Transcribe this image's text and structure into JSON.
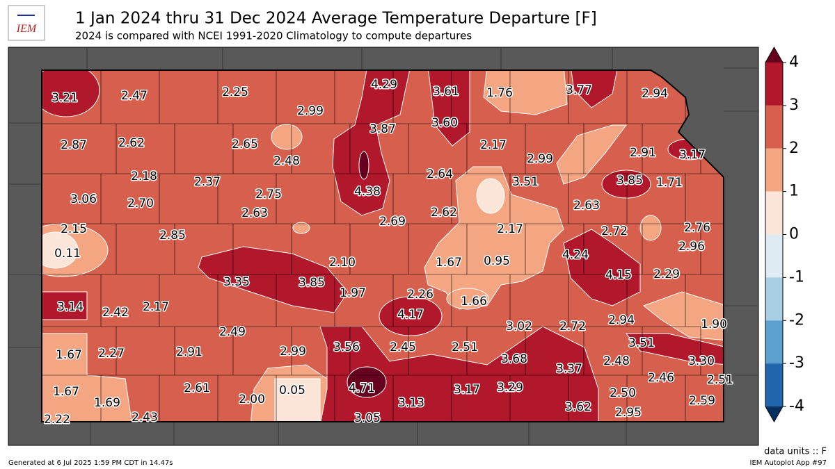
{
  "logo": {
    "text": "IEM"
  },
  "title": "1 Jan 2024 thru 31 Dec 2024 Average Temperature Departure [F]",
  "subtitle": "2024 is compared with NCEI 1991-2020 Climatology to compute departures",
  "labels": [
    "3.21",
    "2.47",
    "2.25",
    "2.99",
    "4.29",
    "3.61",
    "1.76",
    "3.77",
    "2.94",
    "2.87",
    "2.62",
    "2.65",
    "2.48",
    "3.87",
    "3.60",
    "2.17",
    "2.99",
    "2.91",
    "3.17",
    "2.18",
    "2.37",
    "2.75",
    "4.38",
    "2.64",
    "3.51",
    "3.85",
    "1.71",
    "3.06",
    "2.70",
    "2.63",
    "2.69",
    "2.62",
    "2.63",
    "2.15",
    "2.85",
    "2.17",
    "2.72",
    "2.76",
    "2.96",
    "0.11",
    "2.10",
    "1.67",
    "0.95",
    "4.24",
    "3.35",
    "3.85",
    "1.97",
    "2.26",
    "4.15",
    "2.29",
    "3.14",
    "2.42",
    "2.17",
    "1.66",
    "4.17",
    "2.94",
    "1.90",
    "2.49",
    "3.02",
    "2.72",
    "3.51",
    "1.67",
    "2.27",
    "2.91",
    "2.99",
    "3.56",
    "2.45",
    "2.51",
    "3.68",
    "3.37",
    "2.48",
    "3.30",
    "1.67",
    "1.69",
    "2.61",
    "2.00",
    "0.05",
    "4.71",
    "3.13",
    "3.17",
    "3.29",
    "2.50",
    "2.46",
    "2.51",
    "2.59",
    "2.22",
    "2.43",
    "3.05",
    "3.62",
    "2.95"
  ],
  "colorbar": {
    "ticks": [
      4,
      3,
      2,
      1,
      0,
      -1,
      -2,
      -3,
      -4
    ],
    "colors": [
      "#b2182b",
      "#d6604d",
      "#f4a582",
      "#fbe4d8",
      "#deebf2",
      "#a9cfe5",
      "#5aa1cf",
      "#2166ac"
    ],
    "extend_colors": [
      "#67001f",
      "#053061"
    ]
  },
  "units": "data units :: F",
  "footer_left": "Generated at 6 Jul 2025 1:59 PM CDT in 14.47s",
  "footer_right": "IEM Autoplot App #97"
}
